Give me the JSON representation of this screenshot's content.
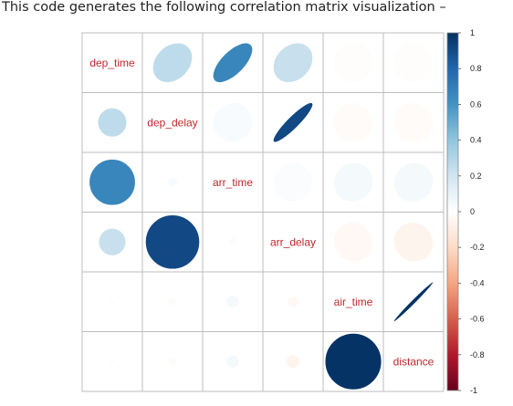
{
  "caption": "This code generates the following correlation matrix visualization –",
  "chart_data": {
    "type": "heatmap",
    "style": "corrplot-ellipse-upper-circle-lower",
    "variables": [
      "dep_time",
      "dep_delay",
      "arr_time",
      "arr_delay",
      "air_time",
      "distance"
    ],
    "matrix": [
      [
        1.0,
        0.26,
        0.66,
        0.23,
        -0.01,
        -0.01
      ],
      [
        0.26,
        1.0,
        0.03,
        0.91,
        -0.02,
        -0.02
      ],
      [
        0.66,
        0.03,
        1.0,
        0.02,
        0.05,
        0.05
      ],
      [
        0.23,
        0.91,
        0.02,
        1.0,
        -0.04,
        -0.06
      ],
      [
        -0.01,
        -0.02,
        0.05,
        -0.04,
        1.0,
        0.99
      ],
      [
        -0.01,
        -0.02,
        0.05,
        -0.06,
        0.99,
        1.0
      ]
    ],
    "colorbar": {
      "range": [
        -1,
        1
      ],
      "ticks": [
        "1",
        "0.8",
        "0.6",
        "0.4",
        "0.2",
        "0",
        "-0.2",
        "-0.4",
        "-0.6",
        "-0.8",
        "-1"
      ],
      "colors": [
        "#053061",
        "#2166ac",
        "#4393c3",
        "#92c5de",
        "#d1e5f0",
        "#ffffff",
        "#fddbc7",
        "#f4a582",
        "#d6604d",
        "#b2182b",
        "#67001f"
      ]
    }
  }
}
